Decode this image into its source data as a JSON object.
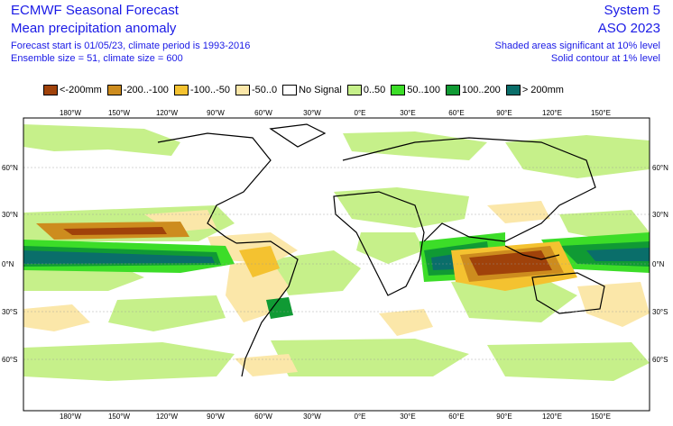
{
  "header": {
    "title_left": "ECMWF Seasonal Forecast",
    "subtitle_left": "Mean precipitation anomaly",
    "line3_left": "Forecast start is 01/05/23, climate period is 1993-2016",
    "line4_left": "Ensemble size = 51, climate size = 600",
    "title_right": "System 5",
    "subtitle_right": "ASO 2023",
    "line3_right": "Shaded areas significant at 10% level",
    "line4_right": "Solid contour at 1% level"
  },
  "legend": [
    {
      "label": "<-200mm",
      "color": "#a0420a"
    },
    {
      "label": "-200..-100",
      "color": "#cd8c1e"
    },
    {
      "label": "-100..-50",
      "color": "#f4c230"
    },
    {
      "label": "-50..0",
      "color": "#fbe7a9"
    },
    {
      "label": "No Signal",
      "color": "#ffffff"
    },
    {
      "label": "0..50",
      "color": "#c6f08a"
    },
    {
      "label": "50..100",
      "color": "#3cdd28"
    },
    {
      "label": "100..200",
      "color": "#109a34"
    },
    {
      "label": "> 200mm",
      "color": "#0a6e6a"
    }
  ],
  "axes": {
    "lon_ticks": [
      "180°W",
      "150°W",
      "120°W",
      "90°W",
      "60°W",
      "30°W",
      "0°E",
      "30°E",
      "60°E",
      "90°E",
      "120°E",
      "150°E"
    ],
    "lat_ticks": [
      "60°N",
      "30°N",
      "0°N",
      "30°S",
      "60°S"
    ]
  }
}
